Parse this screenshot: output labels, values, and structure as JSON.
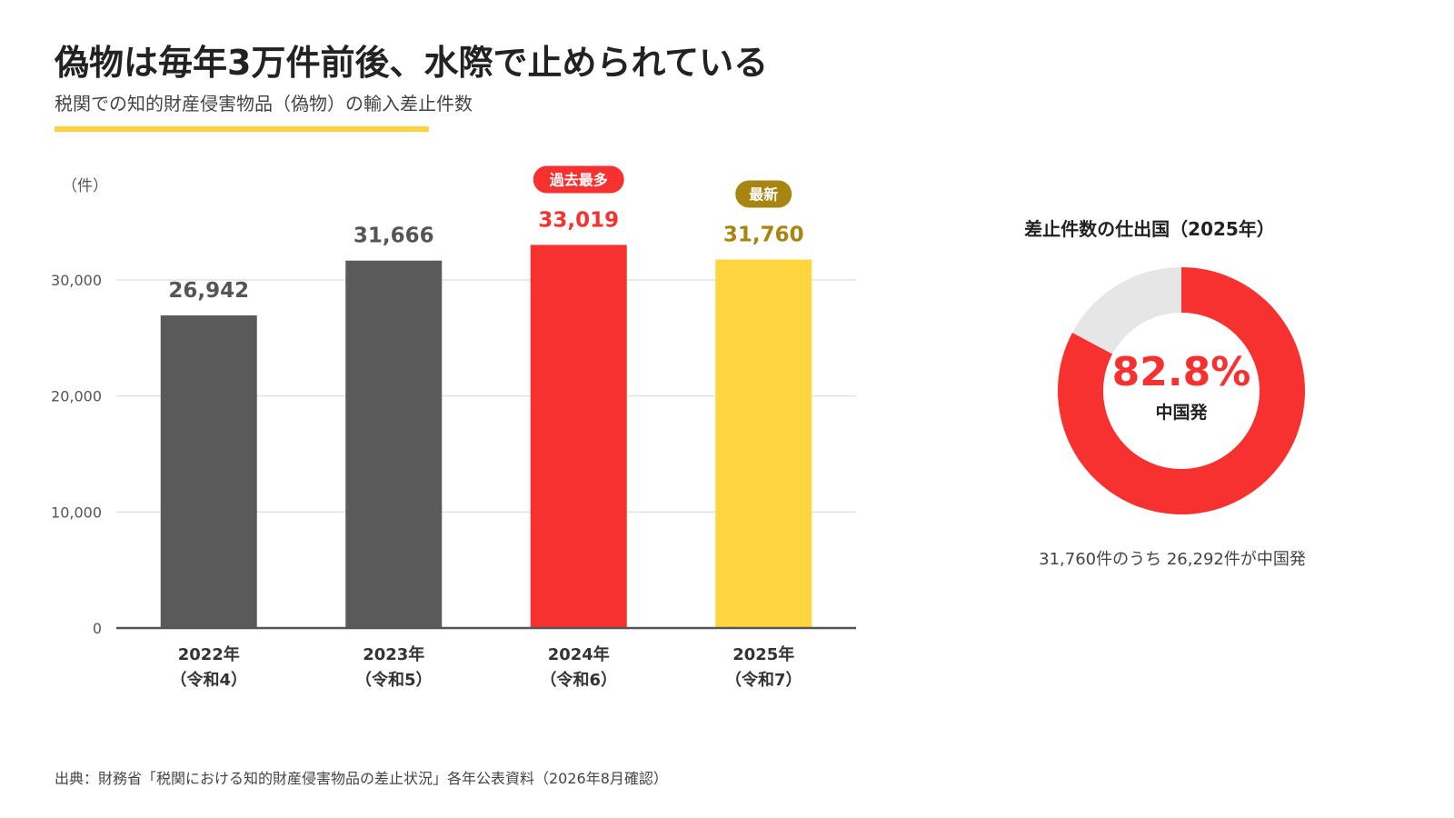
{
  "header": {
    "title": "偽物は毎年3万件前後、水際で止められている",
    "subtitle": "税関での知的財産侵害物品（偽物）の輸入差止件数"
  },
  "colors": {
    "accent_yellow": "#FFD23F",
    "bar_gray": "#5a5a5a",
    "highlight_red": "#F73030",
    "gold_text": "#A88410",
    "grid": "#e3e3e3"
  },
  "chart_data": [
    {
      "type": "bar",
      "unit_label": "（件）",
      "categories": [
        "2022年",
        "2023年",
        "2024年",
        "2025年"
      ],
      "category_sublabels": [
        "（令和4）",
        "（令和5）",
        "（令和6）",
        "（令和7）"
      ],
      "values": [
        26942,
        31666,
        33019,
        31760
      ],
      "value_labels": [
        "26,942",
        "31,666",
        "33,019",
        "31,760"
      ],
      "bar_colors": [
        "#5a5a5a",
        "#5a5a5a",
        "#F73030",
        "#FFD63F"
      ],
      "value_label_colors": [
        "#555555",
        "#555555",
        "#F73030",
        "#A88410"
      ],
      "badges": [
        {
          "index": 2,
          "text": "過去最多",
          "color": "#F73030"
        },
        {
          "index": 3,
          "text": "最新",
          "color": "#A88410"
        }
      ],
      "yticks": [
        0,
        10000,
        20000,
        30000
      ],
      "ytick_labels": [
        "0",
        "10,000",
        "20,000",
        "30,000"
      ],
      "ylim": [
        0,
        34500
      ],
      "grid": true
    },
    {
      "type": "pie",
      "title": "差止件数の仕出国（2025年）",
      "slices": [
        {
          "label": "中国発",
          "value": 82.8,
          "color": "#F73030"
        },
        {
          "label": "",
          "value": 17.2,
          "color": "#e6e6e6"
        }
      ],
      "center_value": "82.8%",
      "center_label": "中国発",
      "note": "31,760件のうち 26,292件が中国発"
    }
  ],
  "footer": {
    "source": "出典：財務省「税関における知的財産侵害物品の差止状況」各年公表資料（2026年8月確認）"
  }
}
